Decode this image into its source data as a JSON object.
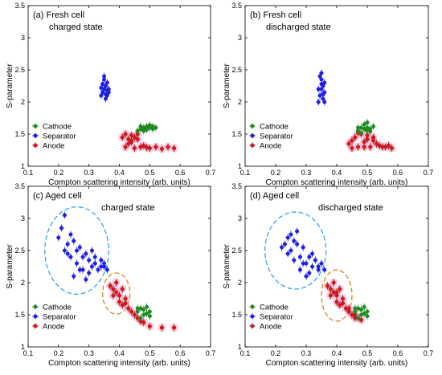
{
  "axis_labels": {
    "x": "Compton scattering intensity (arb. units)",
    "y": "S-parameter"
  },
  "legend_labels": [
    "Cathode",
    "Separator",
    "Anode"
  ],
  "colors": {
    "cathode": "#1f8a1f",
    "separator": "#1f1fe6",
    "anode": "#e01515",
    "anode_halo": "#f3a6c8",
    "anode_edge": "#8b1a1a",
    "ellipse_blue": "#3aa3e8",
    "ellipse_orange": "#d08a1a"
  },
  "chart_data": [
    {
      "id": "a",
      "type": "scatter",
      "annotation": [
        "(a) Fresh cell",
        "charged state"
      ],
      "xlabel": "Compton scattering intensity (arb. units)",
      "ylabel": "S-parameter",
      "xlim": [
        0.1,
        0.7
      ],
      "ylim": [
        1.0,
        3.5
      ],
      "xticks": [
        "0.1",
        "0.2",
        "0.3",
        "0.4",
        "0.5",
        "0.6",
        "0.7"
      ],
      "yticks": [
        "1",
        "1.5",
        "2",
        "2.5",
        "3",
        "3.5"
      ],
      "legend": "bottom-left",
      "series": [
        {
          "name": "Cathode",
          "x": [
            0.46,
            0.47,
            0.48,
            0.49,
            0.5,
            0.51,
            0.52,
            0.47,
            0.49,
            0.51,
            0.48,
            0.5
          ],
          "y": [
            1.55,
            1.58,
            1.6,
            1.62,
            1.6,
            1.58,
            1.6,
            1.62,
            1.57,
            1.62,
            1.55,
            1.64
          ]
        },
        {
          "name": "Separator",
          "x": [
            0.34,
            0.345,
            0.35,
            0.355,
            0.36,
            0.365,
            0.35,
            0.355,
            0.36,
            0.345,
            0.35,
            0.36,
            0.355,
            0.34,
            0.365
          ],
          "y": [
            2.1,
            2.15,
            2.2,
            2.25,
            2.3,
            2.2,
            2.35,
            2.05,
            2.1,
            2.28,
            2.4,
            2.18,
            2.12,
            2.22,
            2.15
          ]
        },
        {
          "name": "Anode",
          "x": [
            0.41,
            0.42,
            0.43,
            0.44,
            0.45,
            0.46,
            0.42,
            0.43,
            0.44,
            0.45,
            0.47,
            0.48,
            0.5,
            0.52,
            0.54,
            0.56,
            0.58,
            0.44,
            0.46,
            0.49
          ],
          "y": [
            1.45,
            1.5,
            1.42,
            1.38,
            1.45,
            1.5,
            1.3,
            1.35,
            1.4,
            1.28,
            1.3,
            1.32,
            1.28,
            1.3,
            1.27,
            1.3,
            1.28,
            1.48,
            1.42,
            1.29
          ]
        }
      ]
    },
    {
      "id": "b",
      "type": "scatter",
      "annotation": [
        "(b) Fresh cell",
        "discharged state"
      ],
      "xlabel": "Compton scattering intensity (arb. units)",
      "ylabel": "S-parameter",
      "xlim": [
        0.1,
        0.7
      ],
      "ylim": [
        1.0,
        3.5
      ],
      "xticks": [
        "0.1",
        "0.2",
        "0.3",
        "0.4",
        "0.5",
        "0.6",
        "0.7"
      ],
      "yticks": [
        "1",
        "1.5",
        "2",
        "2.5",
        "3",
        "3.5"
      ],
      "legend": "bottom-left",
      "series": [
        {
          "name": "Cathode",
          "x": [
            0.47,
            0.48,
            0.49,
            0.5,
            0.51,
            0.52,
            0.48,
            0.5,
            0.49,
            0.51,
            0.47,
            0.5
          ],
          "y": [
            1.55,
            1.6,
            1.65,
            1.6,
            1.58,
            1.62,
            1.52,
            1.68,
            1.58,
            1.54,
            1.6,
            1.55
          ]
        },
        {
          "name": "Separator",
          "x": [
            0.34,
            0.345,
            0.35,
            0.355,
            0.36,
            0.35,
            0.355,
            0.36,
            0.345,
            0.35,
            0.34,
            0.355,
            0.36,
            0.35
          ],
          "y": [
            2.0,
            2.1,
            2.2,
            2.25,
            2.15,
            2.35,
            2.05,
            2.3,
            2.4,
            2.45,
            2.2,
            2.12,
            2.0,
            2.28
          ]
        },
        {
          "name": "Anode",
          "x": [
            0.44,
            0.45,
            0.46,
            0.47,
            0.48,
            0.49,
            0.5,
            0.51,
            0.52,
            0.53,
            0.54,
            0.56,
            0.58,
            0.45,
            0.47,
            0.49,
            0.5,
            0.52,
            0.55,
            0.57
          ],
          "y": [
            1.35,
            1.4,
            1.45,
            1.3,
            1.5,
            1.38,
            1.42,
            1.3,
            1.45,
            1.35,
            1.32,
            1.3,
            1.28,
            1.28,
            1.52,
            1.3,
            1.48,
            1.4,
            1.3,
            1.32
          ]
        }
      ]
    },
    {
      "id": "c",
      "type": "scatter",
      "annotation": [
        "(c) Aged cell",
        "charged state"
      ],
      "xlabel": "Compton scattering intensity (arb. units)",
      "ylabel": "S-parameter",
      "xlim": [
        0.1,
        0.7
      ],
      "ylim": [
        1.0,
        3.5
      ],
      "xticks": [
        "0.1",
        "0.2",
        "0.3",
        "0.4",
        "0.5",
        "0.6",
        "0.7"
      ],
      "yticks": [
        "1",
        "1.5",
        "2",
        "2.5",
        "3",
        "3.5"
      ],
      "legend": "bottom-left",
      "series": [
        {
          "name": "Cathode",
          "x": [
            0.46,
            0.47,
            0.48,
            0.49,
            0.5,
            0.47,
            0.48,
            0.49,
            0.46,
            0.5
          ],
          "y": [
            1.55,
            1.6,
            1.5,
            1.62,
            1.55,
            1.45,
            1.58,
            1.52,
            1.6,
            1.48
          ]
        },
        {
          "name": "Separator",
          "x": [
            0.22,
            0.21,
            0.2,
            0.23,
            0.24,
            0.22,
            0.25,
            0.26,
            0.24,
            0.27,
            0.28,
            0.26,
            0.29,
            0.3,
            0.28,
            0.31,
            0.32,
            0.3,
            0.33,
            0.34,
            0.35,
            0.32,
            0.34,
            0.36,
            0.35,
            0.27,
            0.25,
            0.23,
            0.29,
            0.31
          ],
          "y": [
            3.05,
            2.85,
            2.7,
            2.6,
            2.75,
            2.5,
            2.65,
            2.5,
            2.4,
            2.55,
            2.4,
            2.3,
            2.45,
            2.35,
            2.2,
            2.25,
            2.3,
            2.15,
            2.2,
            2.25,
            2.25,
            2.4,
            2.35,
            2.2,
            2.3,
            2.2,
            2.1,
            2.45,
            2.05,
            2.5
          ]
        },
        {
          "name": "Anode",
          "x": [
            0.37,
            0.38,
            0.39,
            0.4,
            0.41,
            0.42,
            0.39,
            0.4,
            0.41,
            0.43,
            0.44,
            0.45,
            0.46,
            0.47,
            0.48,
            0.5,
            0.54,
            0.58,
            0.38,
            0.42
          ],
          "y": [
            1.95,
            1.9,
            1.85,
            1.8,
            1.9,
            1.75,
            2.0,
            1.7,
            1.65,
            1.6,
            1.55,
            1.5,
            1.45,
            1.4,
            1.38,
            1.32,
            1.3,
            1.3,
            1.8,
            1.68
          ]
        }
      ],
      "ellipses": [
        {
          "color": "ellipse_blue",
          "cx": 0.26,
          "cy": 2.5,
          "rx": 0.105,
          "ry": 0.68
        },
        {
          "color": "ellipse_orange",
          "cx": 0.39,
          "cy": 1.83,
          "rx": 0.045,
          "ry": 0.32
        }
      ]
    },
    {
      "id": "d",
      "type": "scatter",
      "annotation": [
        "(d) Aged cell",
        "discharged state"
      ],
      "xlabel": "Compton scattering intensity (arb. units)",
      "ylabel": "S-parameter",
      "xlim": [
        0.1,
        0.7
      ],
      "ylim": [
        1.0,
        3.5
      ],
      "xticks": [
        "0.1",
        "0.2",
        "0.3",
        "0.4",
        "0.5",
        "0.6",
        "0.7"
      ],
      "yticks": [
        "1",
        "1.5",
        "2",
        "2.5",
        "3",
        "3.5"
      ],
      "legend": "bottom-left",
      "series": [
        {
          "name": "Cathode",
          "x": [
            0.46,
            0.47,
            0.48,
            0.49,
            0.5,
            0.47,
            0.48,
            0.49,
            0.46,
            0.5
          ],
          "y": [
            1.55,
            1.6,
            1.5,
            1.62,
            1.55,
            1.45,
            1.58,
            1.52,
            1.6,
            1.48
          ]
        },
        {
          "name": "Separator",
          "x": [
            0.22,
            0.23,
            0.24,
            0.25,
            0.26,
            0.27,
            0.28,
            0.29,
            0.3,
            0.31,
            0.32,
            0.33,
            0.34,
            0.35,
            0.24,
            0.26,
            0.28,
            0.3,
            0.32,
            0.34,
            0.36,
            0.25,
            0.27,
            0.29,
            0.31
          ],
          "y": [
            2.55,
            2.6,
            2.7,
            2.5,
            2.65,
            2.8,
            2.4,
            2.55,
            2.3,
            2.4,
            2.25,
            2.35,
            2.2,
            2.3,
            2.45,
            2.35,
            2.2,
            2.1,
            2.45,
            2.25,
            2.2,
            2.75,
            2.6,
            2.3,
            2.15
          ]
        },
        {
          "name": "Anode",
          "x": [
            0.37,
            0.38,
            0.39,
            0.4,
            0.41,
            0.42,
            0.39,
            0.4,
            0.41,
            0.43,
            0.44,
            0.45,
            0.46,
            0.47,
            0.48,
            0.38,
            0.42,
            0.44,
            0.46,
            0.4
          ],
          "y": [
            1.95,
            1.9,
            1.85,
            1.8,
            1.9,
            1.75,
            2.0,
            1.7,
            1.65,
            1.6,
            1.55,
            1.5,
            1.45,
            1.45,
            1.42,
            1.8,
            1.68,
            1.6,
            1.5,
            1.85
          ]
        }
      ],
      "ellipses": [
        {
          "color": "ellipse_blue",
          "cx": 0.265,
          "cy": 2.5,
          "rx": 0.1,
          "ry": 0.6
        },
        {
          "color": "ellipse_orange",
          "cx": 0.4,
          "cy": 1.8,
          "rx": 0.05,
          "ry": 0.4
        }
      ]
    }
  ]
}
